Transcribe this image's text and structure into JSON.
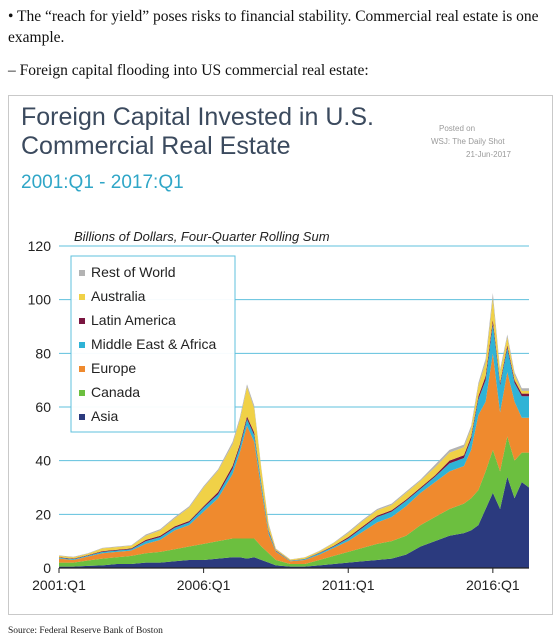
{
  "post": {
    "bullet_marker": "•",
    "bullet_text": "The “reach for yield” poses risks to financial stability. Commercial real estate is one example.",
    "dash_marker": "–",
    "dash_text": "Foreign capital flooding into US commercial real estate:",
    "source": "Source: Federal Reserve Bank of Boston"
  },
  "chart_data": {
    "type": "area",
    "stacked": true,
    "title_line1": "Foreign Capital Invested in U.S.",
    "title_line2": "Commercial Real Estate",
    "subtitle": "2001:Q1 - 2017:Q1",
    "posted": [
      "Posted on",
      "WSJ: The Daily Shot",
      "21-Jun-2017"
    ],
    "ylabel": "Billions of Dollars, Four-Quarter Rolling Sum",
    "ylim": [
      0,
      120
    ],
    "yticks": [
      0,
      20,
      40,
      60,
      80,
      100,
      120
    ],
    "xlim": [
      2001.0,
      2017.25
    ],
    "xticks": [
      {
        "label": "2001:Q1",
        "value": 2001.0
      },
      {
        "label": "2006:Q1",
        "value": 2006.0
      },
      {
        "label": "2011:Q1",
        "value": 2011.0
      },
      {
        "label": "2016:Q1",
        "value": 2016.0
      }
    ],
    "grid": true,
    "legend_position": "top-left",
    "x": [
      2001.0,
      2001.5,
      2002.0,
      2002.5,
      2003.0,
      2003.5,
      2004.0,
      2004.5,
      2005.0,
      2005.5,
      2006.0,
      2006.5,
      2007.0,
      2007.25,
      2007.5,
      2007.75,
      2008.0,
      2008.25,
      2008.5,
      2009.0,
      2009.5,
      2010.0,
      2010.5,
      2011.0,
      2011.5,
      2012.0,
      2012.5,
      2013.0,
      2013.5,
      2014.0,
      2014.5,
      2015.0,
      2015.25,
      2015.5,
      2015.75,
      2016.0,
      2016.25,
      2016.5,
      2016.75,
      2017.0,
      2017.25
    ],
    "series": [
      {
        "name": "Asia",
        "color": "#2b3a7e",
        "values": [
          0.5,
          0.5,
          0.8,
          1.0,
          1.5,
          1.5,
          2.0,
          2.0,
          2.5,
          3.0,
          3.0,
          3.5,
          4.0,
          4.0,
          3.5,
          4.0,
          3.0,
          2.0,
          1.0,
          0.5,
          0.5,
          1.0,
          1.5,
          2.0,
          2.5,
          3.0,
          3.5,
          5.0,
          8.0,
          10.0,
          12.0,
          13.0,
          14.0,
          16.0,
          22.0,
          28.0,
          22.0,
          34.0,
          26.0,
          32.0,
          30.0
        ]
      },
      {
        "name": "Canada",
        "color": "#6cbf3f",
        "values": [
          1.5,
          1.5,
          2.0,
          2.5,
          2.5,
          3.0,
          3.5,
          4.0,
          4.5,
          5.0,
          6.0,
          6.5,
          7.0,
          7.0,
          7.5,
          7.0,
          5.0,
          3.5,
          2.0,
          1.0,
          1.0,
          2.0,
          3.0,
          4.0,
          5.0,
          6.0,
          6.5,
          7.0,
          8.0,
          9.0,
          10.0,
          11.0,
          12.0,
          13.0,
          14.0,
          16.0,
          14.0,
          15.0,
          14.0,
          11.0,
          13.0
        ]
      },
      {
        "name": "Europe",
        "color": "#ef8a2e",
        "values": [
          1.5,
          1.0,
          1.5,
          2.0,
          2.0,
          2.0,
          3.5,
          4.5,
          7.0,
          8.0,
          12.0,
          16.0,
          24.0,
          32.0,
          42.0,
          36.0,
          21.0,
          7.0,
          3.0,
          1.0,
          1.5,
          2.0,
          3.0,
          4.0,
          6.0,
          8.0,
          9.0,
          11.0,
          12.0,
          13.0,
          14.0,
          14.0,
          18.0,
          28.0,
          26.0,
          36.0,
          22.0,
          24.0,
          22.0,
          13.0,
          13.0
        ]
      },
      {
        "name": "Middle East & Africa",
        "color": "#2fb3d6",
        "values": [
          0.3,
          0.3,
          0.3,
          0.5,
          0.5,
          0.5,
          1.0,
          1.0,
          1.0,
          1.0,
          1.5,
          1.5,
          2.0,
          2.0,
          2.5,
          2.5,
          2.0,
          1.0,
          0.3,
          0.2,
          0.3,
          0.5,
          0.5,
          1.0,
          1.5,
          2.0,
          2.0,
          2.0,
          1.5,
          2.0,
          3.0,
          3.0,
          4.0,
          6.0,
          8.0,
          11.0,
          10.0,
          9.0,
          7.0,
          8.0,
          8.0
        ]
      },
      {
        "name": "Latin America",
        "color": "#7a1540",
        "values": [
          0.2,
          0.2,
          0.2,
          0.3,
          0.3,
          0.3,
          0.5,
          0.5,
          0.5,
          0.5,
          0.5,
          0.8,
          1.0,
          1.0,
          1.0,
          1.0,
          0.5,
          0.5,
          0.2,
          0.1,
          0.1,
          0.2,
          0.3,
          0.5,
          0.5,
          0.5,
          0.5,
          0.5,
          0.5,
          0.5,
          1.0,
          1.0,
          1.0,
          1.0,
          1.5,
          1.5,
          1.0,
          1.0,
          1.0,
          1.0,
          1.0
        ]
      },
      {
        "name": "Australia",
        "color": "#f0d147",
        "values": [
          0.5,
          0.5,
          0.5,
          1.0,
          1.0,
          1.0,
          1.5,
          2.0,
          3.0,
          5.0,
          7.0,
          8.0,
          8.0,
          9.0,
          11.0,
          9.0,
          5.0,
          2.0,
          0.5,
          0.3,
          0.5,
          0.5,
          1.0,
          1.5,
          2.0,
          2.0,
          2.0,
          2.5,
          2.5,
          3.0,
          3.0,
          3.0,
          3.0,
          4.0,
          5.0,
          8.0,
          4.0,
          3.0,
          2.0,
          1.0,
          1.0
        ]
      },
      {
        "name": "Rest of World",
        "color": "#b3b3b3",
        "values": [
          0.2,
          0.2,
          0.2,
          0.2,
          0.2,
          0.2,
          0.5,
          0.5,
          0.5,
          0.5,
          0.5,
          0.5,
          1.0,
          1.0,
          1.0,
          1.0,
          0.5,
          0.5,
          0.2,
          0.1,
          0.1,
          0.2,
          0.2,
          0.5,
          0.5,
          0.5,
          0.5,
          0.5,
          0.5,
          1.0,
          1.0,
          1.0,
          1.0,
          1.0,
          1.5,
          2.0,
          1.0,
          1.0,
          1.0,
          1.0,
          1.0
        ]
      }
    ]
  }
}
